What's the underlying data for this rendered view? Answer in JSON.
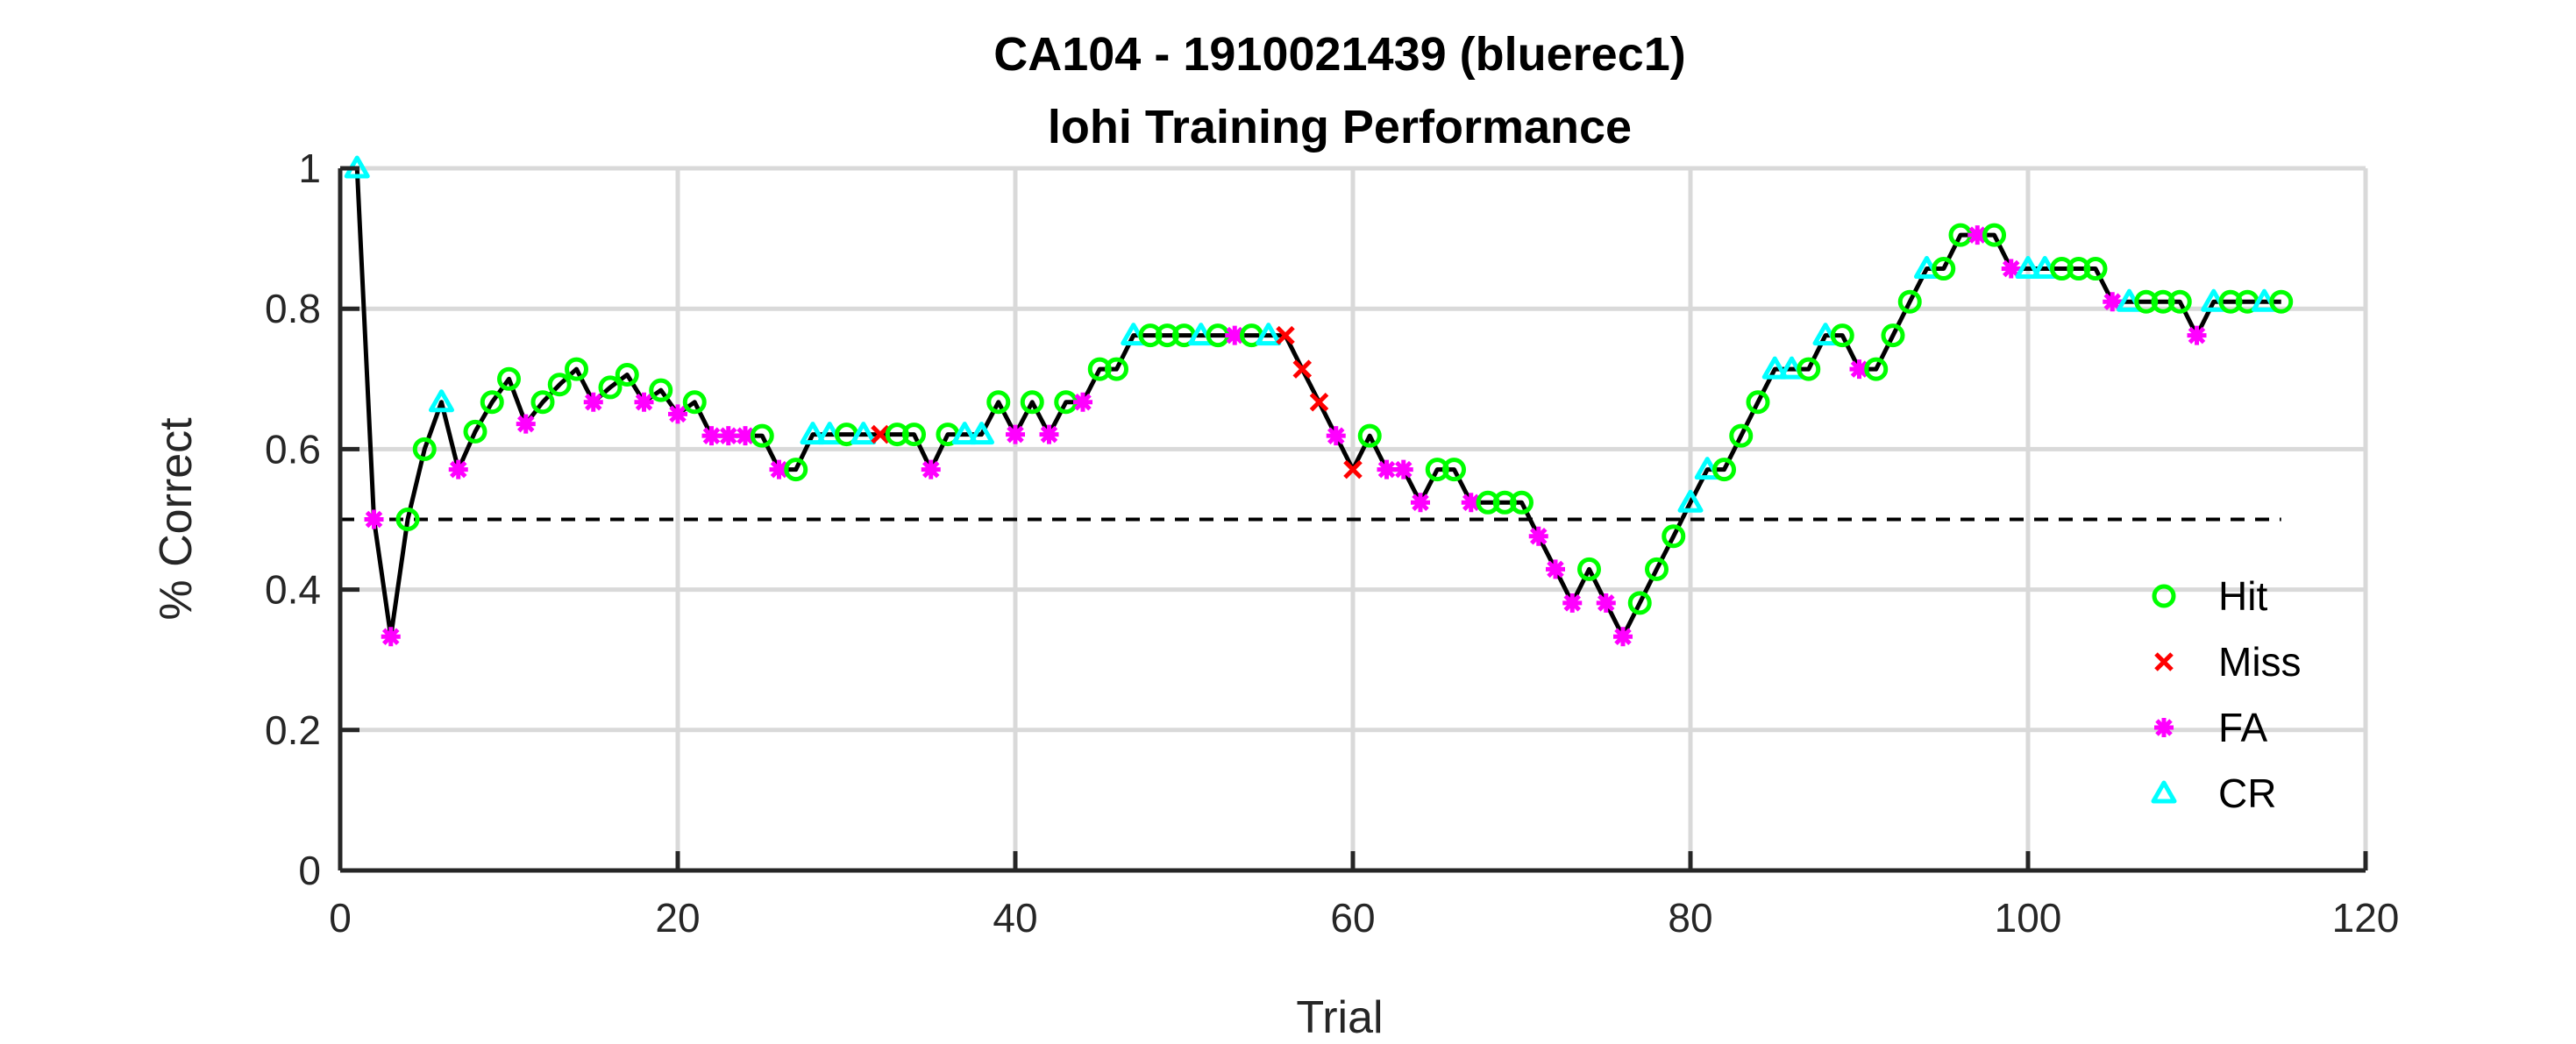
{
  "chart_data": {
    "type": "line",
    "title": "CA104 - 1910021439 (bluerec1)",
    "subtitle": "lohi Training Performance",
    "xlabel": "Trial",
    "ylabel": "% Correct",
    "xlim": [
      0,
      120
    ],
    "ylim": [
      0,
      1
    ],
    "xticks": [
      0,
      20,
      40,
      60,
      80,
      100,
      120
    ],
    "yticks": [
      0,
      0.2,
      0.4,
      0.6,
      0.8,
      1
    ],
    "ytick_labels": [
      "0",
      "0.2",
      "0.4",
      "0.6",
      "0.8",
      "1"
    ],
    "grid": true,
    "reference_line": {
      "y": 0.5,
      "x_range": [
        0,
        115
      ],
      "style": "dashed"
    },
    "legend_position": "lower-right",
    "legend": [
      {
        "name": "Hit",
        "marker": "circle",
        "color": "#00ff00"
      },
      {
        "name": "Miss",
        "marker": "x",
        "color": "#ff0000"
      },
      {
        "name": "FA",
        "marker": "asterisk",
        "color": "#ff00ff"
      },
      {
        "name": "CR",
        "marker": "triangle",
        "color": "#00ffff"
      }
    ],
    "line_color": "#000000",
    "series": [
      {
        "name": "Performance",
        "x": [
          1,
          2,
          3,
          4,
          5,
          6,
          7,
          8,
          9,
          10,
          11,
          12,
          13,
          14,
          15,
          16,
          17,
          18,
          19,
          20,
          21,
          22,
          23,
          24,
          25,
          26,
          27,
          28,
          29,
          30,
          31,
          32,
          33,
          34,
          35,
          36,
          37,
          38,
          39,
          40,
          41,
          42,
          43,
          44,
          45,
          46,
          47,
          48,
          49,
          50,
          51,
          52,
          53,
          54,
          55,
          56,
          57,
          58,
          59,
          60,
          61,
          62,
          63,
          64,
          65,
          66,
          67,
          68,
          69,
          70,
          71,
          72,
          73,
          74,
          75,
          76,
          77,
          78,
          79,
          80,
          81,
          82,
          83,
          84,
          85,
          86,
          87,
          88,
          89,
          90,
          91,
          92,
          93,
          94,
          95,
          96,
          97,
          98,
          99,
          100,
          101,
          102,
          103,
          104,
          105,
          106,
          107,
          108,
          109,
          110,
          111,
          112,
          113,
          114,
          115
        ],
        "y": [
          1,
          0.5,
          0.333,
          0.5,
          0.6,
          0.667,
          0.571,
          0.625,
          0.667,
          0.7,
          0.636,
          0.667,
          0.692,
          0.714,
          0.667,
          0.688,
          0.706,
          0.667,
          0.684,
          0.65,
          0.667,
          0.619,
          0.619,
          0.619,
          0.619,
          0.571,
          0.571,
          0.621,
          0.621,
          0.621,
          0.621,
          0.621,
          0.621,
          0.621,
          0.571,
          0.621,
          0.621,
          0.621,
          0.667,
          0.621,
          0.667,
          0.621,
          0.667,
          0.667,
          0.714,
          0.714,
          0.762,
          0.762,
          0.762,
          0.762,
          0.762,
          0.762,
          0.762,
          0.762,
          0.762,
          0.762,
          0.714,
          0.667,
          0.619,
          0.571,
          0.619,
          0.571,
          0.571,
          0.524,
          0.571,
          0.571,
          0.524,
          0.524,
          0.524,
          0.524,
          0.476,
          0.429,
          0.381,
          0.429,
          0.381,
          0.333,
          0.381,
          0.429,
          0.476,
          0.524,
          0.571,
          0.571,
          0.619,
          0.667,
          0.714,
          0.714,
          0.714,
          0.762,
          0.762,
          0.714,
          0.714,
          0.762,
          0.81,
          0.857,
          0.857,
          0.905,
          0.905,
          0.905,
          0.857,
          0.857,
          0.857,
          0.857,
          0.857,
          0.857,
          0.81,
          0.81,
          0.81,
          0.81,
          0.81,
          0.762,
          0.81,
          0.81,
          0.81,
          0.81,
          0.81
        ],
        "outcome": [
          "CR",
          "FA",
          "FA",
          "Hit",
          "Hit",
          "CR",
          "FA",
          "Hit",
          "Hit",
          "Hit",
          "FA",
          "Hit",
          "Hit",
          "Hit",
          "FA",
          "Hit",
          "Hit",
          "FA",
          "Hit",
          "FA",
          "Hit",
          "FA",
          "FA",
          "FA",
          "Hit",
          "FA",
          "Hit",
          "CR",
          "CR",
          "Hit",
          "CR",
          "Miss",
          "Hit",
          "Hit",
          "FA",
          "Hit",
          "CR",
          "CR",
          "Hit",
          "FA",
          "Hit",
          "FA",
          "Hit",
          "FA",
          "Hit",
          "Hit",
          "CR",
          "Hit",
          "Hit",
          "Hit",
          "CR",
          "Hit",
          "FA",
          "Hit",
          "CR",
          "Miss",
          "Miss",
          "Miss",
          "FA",
          "Miss",
          "Hit",
          "FA",
          "FA",
          "FA",
          "Hit",
          "Hit",
          "FA",
          "Hit",
          "Hit",
          "Hit",
          "FA",
          "FA",
          "FA",
          "Hit",
          "FA",
          "FA",
          "Hit",
          "Hit",
          "Hit",
          "CR",
          "CR",
          "Hit",
          "Hit",
          "Hit",
          "CR",
          "CR",
          "Hit",
          "CR",
          "Hit",
          "FA",
          "Hit",
          "Hit",
          "Hit",
          "CR",
          "Hit",
          "Hit",
          "FA",
          "Hit",
          "FA",
          "CR",
          "CR",
          "Hit",
          "Hit",
          "Hit",
          "FA",
          "CR",
          "Hit",
          "Hit",
          "Hit",
          "FA",
          "CR",
          "Hit",
          "Hit",
          "CR",
          "Hit"
        ]
      }
    ]
  }
}
